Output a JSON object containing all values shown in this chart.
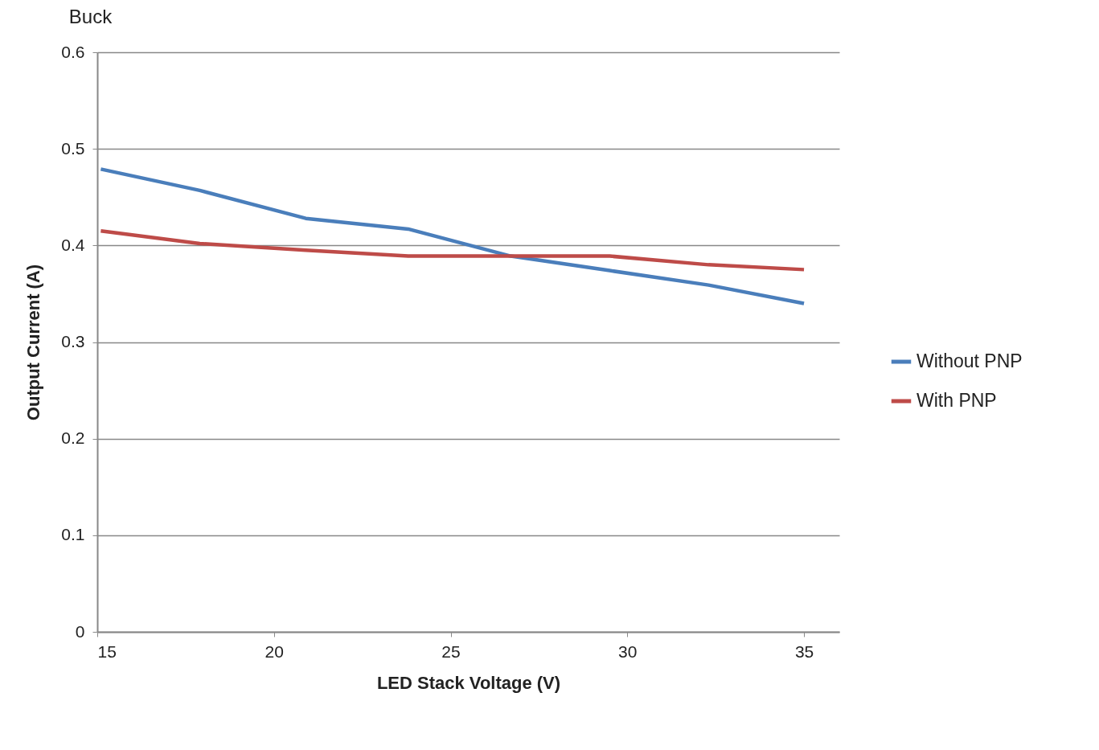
{
  "chart_data": {
    "type": "line",
    "title": "Buck",
    "xlabel": "LED Stack Voltage (V)",
    "ylabel": "Output Current (A)",
    "x": [
      15.1,
      17.9,
      20.9,
      23.8,
      26.7,
      29.5,
      32.3,
      35
    ],
    "series": [
      {
        "name": "Without PNP",
        "color": "#4a7ebb",
        "values": [
          0.479,
          0.457,
          0.428,
          0.417,
          0.389,
          0.374,
          0.359,
          0.34
        ]
      },
      {
        "name": "With PNP",
        "color": "#be4b48",
        "values": [
          0.415,
          0.402,
          0.395,
          0.389,
          0.389,
          0.389,
          0.38,
          0.375
        ]
      }
    ],
    "xlim": [
      15,
      36
    ],
    "xticks": [
      15,
      20,
      25,
      30,
      35
    ],
    "ylim": [
      0,
      0.6
    ],
    "yticks": [
      0,
      0.1,
      0.2,
      0.3,
      0.4,
      0.5,
      0.6
    ],
    "grid": "y",
    "legend": "right",
    "marker": "none",
    "line_style": "solid"
  }
}
